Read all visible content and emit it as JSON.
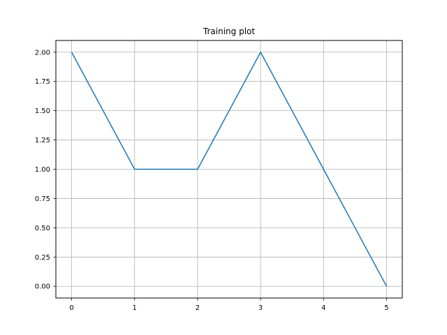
{
  "chart_data": {
    "type": "line",
    "title": "Training plot",
    "xlabel": "",
    "ylabel": "",
    "x": [
      0,
      1,
      2,
      3,
      4,
      5
    ],
    "series": [
      {
        "values": [
          2.0,
          1.0,
          1.0,
          2.0,
          1.0,
          0.0
        ],
        "color": "#1f77b4"
      }
    ],
    "xlim": [
      -0.25,
      5.25
    ],
    "ylim": [
      -0.1,
      2.1
    ],
    "xticks": [
      0,
      1,
      2,
      3,
      4,
      5
    ],
    "xtick_labels": [
      "0",
      "1",
      "2",
      "3",
      "4",
      "5"
    ],
    "yticks": [
      0,
      0.25,
      0.5,
      0.75,
      1.0,
      1.25,
      1.5,
      1.75,
      2.0
    ],
    "ytick_labels": [
      "0.00",
      "0.25",
      "0.50",
      "0.75",
      "1.00",
      "1.25",
      "1.50",
      "1.75",
      "2.00"
    ],
    "grid": true,
    "grid_color": "#b0b0b0",
    "legend": "none"
  }
}
